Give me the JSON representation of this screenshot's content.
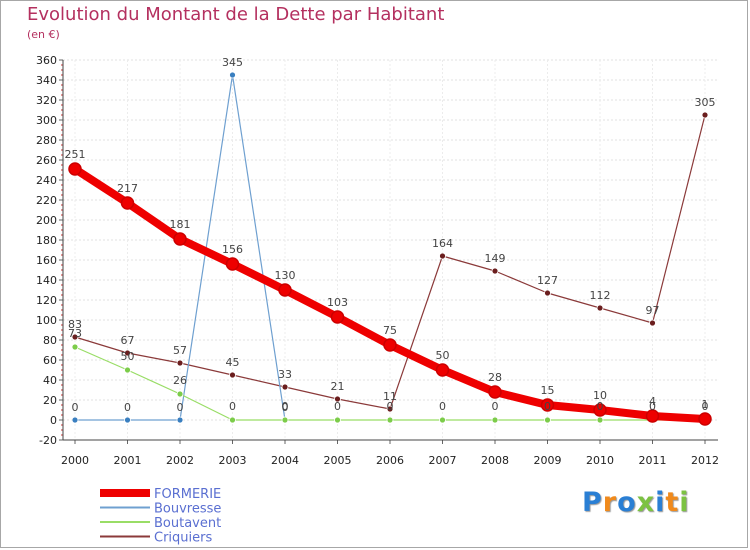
{
  "title": "Evolution du Montant de la Dette par Habitant",
  "subtitle": "(en €)",
  "logo": {
    "text": "Proxiti",
    "letter_colors": [
      "#2a7fd4",
      "#f08a1c",
      "#2a7fd4",
      "#7cc242",
      "#2a7fd4",
      "#f08a1c",
      "#7cc242"
    ]
  },
  "chart_data": {
    "type": "line",
    "title": "Evolution du Montant de la Dette par Habitant",
    "ylabel": "(en €)",
    "xlabel": "",
    "ylim": [
      -20,
      360
    ],
    "yticks": [
      -20,
      0,
      20,
      40,
      60,
      80,
      100,
      120,
      140,
      160,
      180,
      200,
      220,
      240,
      260,
      280,
      300,
      320,
      340,
      360
    ],
    "grid": true,
    "legend": "bottom-left",
    "categories": [
      "2000",
      "2001",
      "2002",
      "2003",
      "2004",
      "2005",
      "2006",
      "2007",
      "2008",
      "2009",
      "2010",
      "2011",
      "2012"
    ],
    "series": [
      {
        "name": "FORMERIE",
        "color": "#ee0000",
        "marker_color": "#ee0000",
        "values": [
          251,
          217,
          181,
          156,
          130,
          103,
          75,
          50,
          28,
          15,
          10,
          4,
          1
        ],
        "labels": [
          "251",
          "217",
          "181",
          "156",
          "130",
          "103",
          "75",
          "50",
          "28",
          "15",
          "10",
          "4",
          "1"
        ]
      },
      {
        "name": "Bouvresse",
        "color": "#6fa0d0",
        "marker_color": "#3a7fc0",
        "values": [
          0,
          0,
          0,
          345,
          0,
          null,
          null,
          null,
          null,
          null,
          null,
          null,
          null
        ],
        "labels": [
          "0",
          "0",
          "0",
          "345",
          "0",
          null,
          null,
          null,
          null,
          null,
          null,
          null,
          null
        ]
      },
      {
        "name": "Boutavent",
        "color": "#99dd66",
        "marker_color": "#7ccc4a",
        "values": [
          73,
          50,
          26,
          0,
          0,
          0,
          0,
          0,
          0,
          0,
          0,
          0,
          0
        ],
        "labels": [
          "73",
          "50",
          "26",
          "0",
          "0",
          "0",
          "0",
          "0",
          "0",
          "0",
          "0",
          "0",
          "0"
        ]
      },
      {
        "name": "Criquiers",
        "color": "#8b3a3a",
        "marker_color": "#6b1e1e",
        "values": [
          83,
          67,
          57,
          45,
          33,
          21,
          11,
          164,
          149,
          127,
          112,
          97,
          305
        ],
        "labels": [
          "83",
          "67",
          "57",
          "45",
          "33",
          "21",
          "11",
          "164",
          "149",
          "127",
          "112",
          "97",
          "305"
        ]
      }
    ]
  }
}
